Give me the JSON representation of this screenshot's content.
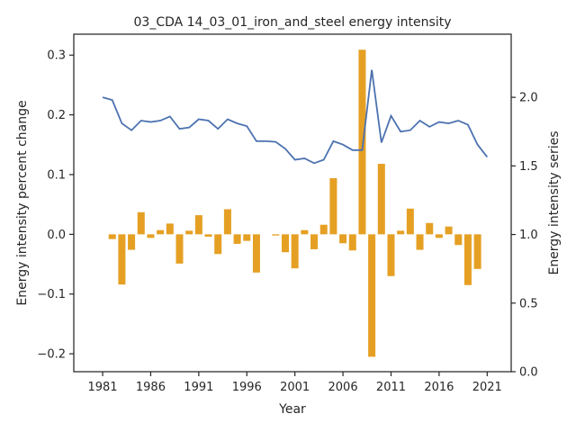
{
  "chart_data": {
    "type": "bar+line",
    "title": "03_CDA 14_03_01_iron_and_steel energy intensity",
    "xlabel": "Year",
    "ylabel_left": "Energy intensity percent change",
    "ylabel_right": "Energy intensity series",
    "xlim": [
      1978,
      2023.5
    ],
    "ylim_left": [
      -0.23,
      0.335
    ],
    "ylim_right": [
      0.0,
      2.46
    ],
    "xticks": [
      1981,
      1986,
      1991,
      1996,
      2001,
      2006,
      2011,
      2016,
      2021
    ],
    "yticks_left": [
      -0.2,
      -0.1,
      0.0,
      0.1,
      0.2,
      0.3
    ],
    "yticks_left_labels": [
      "−0.2",
      "−0.1",
      "0.0",
      "0.1",
      "0.2",
      "0.3"
    ],
    "yticks_right": [
      0.0,
      0.5,
      1.0,
      1.5,
      2.0
    ],
    "yticks_right_labels": [
      "0.0",
      "0.5",
      "1.0",
      "1.5",
      "2.0"
    ],
    "grid": false,
    "colors": {
      "bars": "#e5a024",
      "line": "#4c72b0",
      "axis": "#262626"
    },
    "series": [
      {
        "kind": "bar",
        "axis": "left",
        "x": [
          1982,
          1983,
          1984,
          1985,
          1986,
          1987,
          1988,
          1989,
          1990,
          1991,
          1992,
          1993,
          1994,
          1995,
          1996,
          1997,
          1998,
          1999,
          2000,
          2001,
          2002,
          2003,
          2004,
          2005,
          2006,
          2007,
          2008,
          2009,
          2010,
          2011,
          2012,
          2013,
          2014,
          2015,
          2016,
          2017,
          2018,
          2019,
          2020,
          2021
        ],
        "values": [
          -0.008,
          -0.084,
          -0.026,
          0.037,
          -0.006,
          0.007,
          0.018,
          -0.049,
          0.006,
          0.032,
          -0.004,
          -0.033,
          0.042,
          -0.016,
          -0.011,
          -0.064,
          0.0,
          -0.002,
          -0.03,
          -0.057,
          0.007,
          -0.025,
          0.016,
          0.094,
          -0.015,
          -0.027,
          0.309,
          -0.205,
          0.118,
          -0.07,
          0.006,
          0.043,
          -0.026,
          0.019,
          -0.006,
          0.013,
          -0.018,
          -0.085,
          -0.058,
          0.0
        ]
      },
      {
        "kind": "line",
        "axis": "right",
        "x": [
          1981,
          1982,
          1983,
          1984,
          1985,
          1986,
          1987,
          1988,
          1989,
          1990,
          1991,
          1992,
          1993,
          1994,
          1995,
          1996,
          1997,
          1998,
          1999,
          2000,
          2001,
          2002,
          2003,
          2004,
          2005,
          2006,
          2007,
          2008,
          2009,
          2010,
          2011,
          2012,
          2013,
          2014,
          2015,
          2016,
          2017,
          2018,
          2019,
          2020,
          2021
        ],
        "values": [
          2.0,
          1.98,
          1.81,
          1.76,
          1.83,
          1.82,
          1.83,
          1.86,
          1.77,
          1.78,
          1.84,
          1.83,
          1.77,
          1.84,
          1.81,
          1.79,
          1.68,
          1.68,
          1.675,
          1.625,
          1.545,
          1.555,
          1.52,
          1.545,
          1.68,
          1.655,
          1.615,
          1.615,
          2.2,
          1.67,
          1.865,
          1.75,
          1.76,
          1.83,
          1.785,
          1.82,
          1.81,
          1.83,
          1.8,
          1.655,
          1.565
        ]
      }
    ]
  }
}
